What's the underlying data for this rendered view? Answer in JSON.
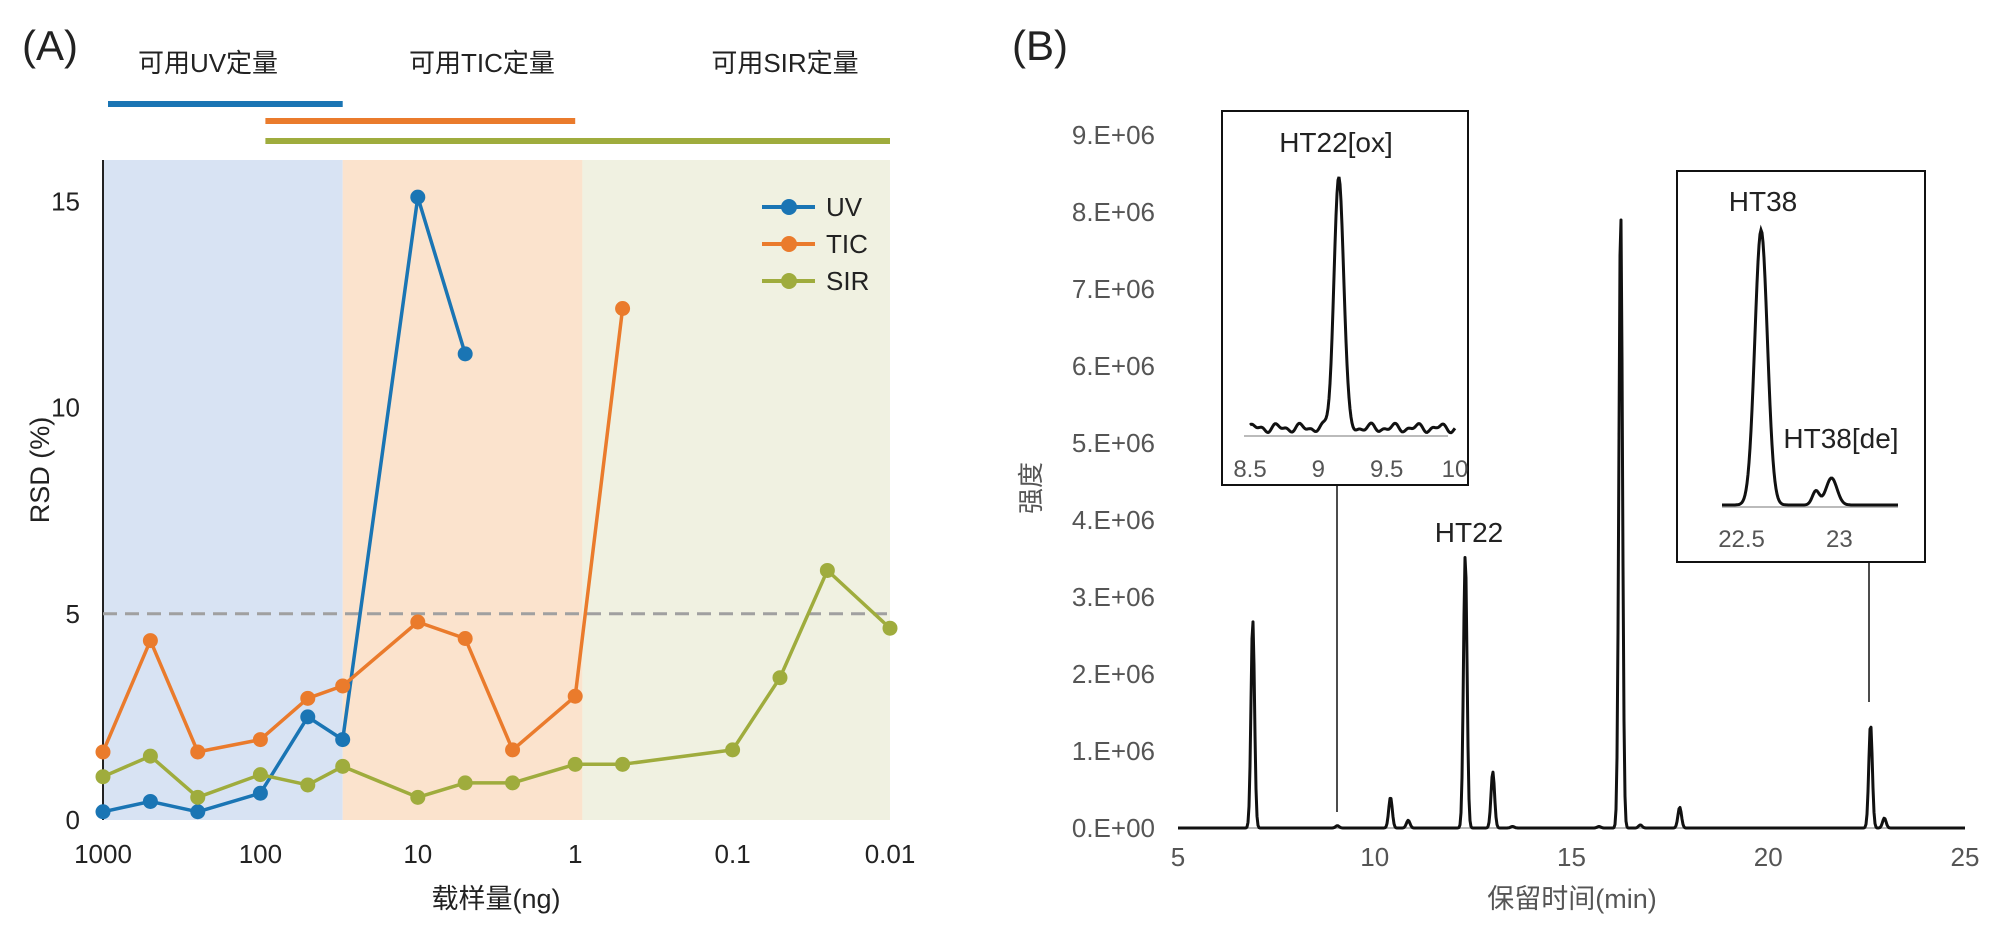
{
  "panel_a": {
    "label": "(A)",
    "ranges": [
      {
        "label": "可用UV定量",
        "color": "#1a75b4",
        "from": 1000,
        "to": 30
      },
      {
        "label": "可用TIC定量",
        "color": "#ea7b2c",
        "from": 100,
        "to": 1
      },
      {
        "label": "可用SIR定量",
        "color": "#9fac3d",
        "from": 100,
        "to": 0.01
      }
    ]
  },
  "panel_b": {
    "label": "(B)",
    "inset_a": {
      "title": "HT22[ox]",
      "xlim": [
        8.5,
        10
      ],
      "ticks": [
        "8.5",
        "9",
        "9.5",
        "10"
      ]
    },
    "inset_b": {
      "title": "HT38",
      "sub_label": "HT38[de]",
      "xlim": [
        22.4,
        23.3
      ],
      "ticks": [
        "22.5",
        "23"
      ]
    }
  },
  "chart_data": [
    {
      "type": "line",
      "title": "",
      "xlabel": "载样量(ng)",
      "ylabel": "RSD (%)",
      "xscale": "log-reversed",
      "xlim": [
        1000,
        0.01
      ],
      "ylim": [
        0,
        16
      ],
      "x_ticks": [
        "1000",
        "100",
        "10",
        "1",
        "0.1",
        "0.01"
      ],
      "y_ticks": [
        "0",
        "5",
        "10",
        "15"
      ],
      "reference_line": 5,
      "background_bands": [
        {
          "from": 1000,
          "to": 30,
          "color": "#d8e3f3"
        },
        {
          "from": 30,
          "to": 0.9,
          "color": "#fbe3cd"
        },
        {
          "from": 0.9,
          "to": 0.01,
          "color": "#f0f1e1"
        }
      ],
      "legend": "top-right",
      "series": [
        {
          "name": "UV",
          "color": "#1a75b4",
          "x": [
            1000,
            500,
            250,
            100,
            50,
            30,
            10,
            5
          ],
          "y": [
            0.2,
            0.45,
            0.2,
            0.65,
            2.5,
            1.95,
            15.1,
            11.3
          ]
        },
        {
          "name": "TIC",
          "color": "#ea7b2c",
          "x": [
            1000,
            500,
            250,
            100,
            50,
            30,
            10,
            5,
            2.5,
            1,
            0.5
          ],
          "y": [
            1.65,
            4.35,
            1.65,
            1.95,
            2.95,
            3.25,
            4.8,
            4.4,
            1.7,
            3.0,
            12.4
          ]
        },
        {
          "name": "SIR",
          "color": "#9fac3d",
          "x": [
            1000,
            500,
            250,
            100,
            50,
            30,
            10,
            5,
            2.5,
            1,
            0.5,
            0.1,
            0.05,
            0.025,
            0.01
          ],
          "y": [
            1.05,
            1.55,
            0.55,
            1.1,
            0.85,
            1.3,
            0.55,
            0.9,
            0.9,
            1.35,
            1.35,
            1.7,
            3.45,
            6.05,
            4.65
          ]
        }
      ]
    },
    {
      "type": "line",
      "title": "",
      "xlabel": "保留时间(min)",
      "ylabel": "强度",
      "xlim": [
        5,
        25
      ],
      "ylim": [
        0,
        9000000
      ],
      "x_ticks": [
        "5",
        "10",
        "15",
        "20",
        "25"
      ],
      "y_ticks": [
        "0.E+00",
        "1.E+06",
        "2.E+06",
        "3.E+06",
        "4.E+06",
        "5.E+06",
        "6.E+06",
        "7.E+06",
        "8.E+06",
        "9.E+06"
      ],
      "peak_label": "HT22",
      "peaks": [
        {
          "rt": 6.9,
          "height": 2700000
        },
        {
          "rt": 9.05,
          "height": 30000
        },
        {
          "rt": 10.4,
          "height": 400000
        },
        {
          "rt": 10.85,
          "height": 100000
        },
        {
          "rt": 12.3,
          "height": 3550000
        },
        {
          "rt": 13.0,
          "height": 730000
        },
        {
          "rt": 13.5,
          "height": 20000
        },
        {
          "rt": 15.7,
          "height": 20000
        },
        {
          "rt": 16.25,
          "height": 8020000
        },
        {
          "rt": 16.75,
          "height": 40000
        },
        {
          "rt": 17.75,
          "height": 270000
        },
        {
          "rt": 22.6,
          "height": 1350000
        },
        {
          "rt": 22.95,
          "height": 130000
        }
      ]
    }
  ]
}
